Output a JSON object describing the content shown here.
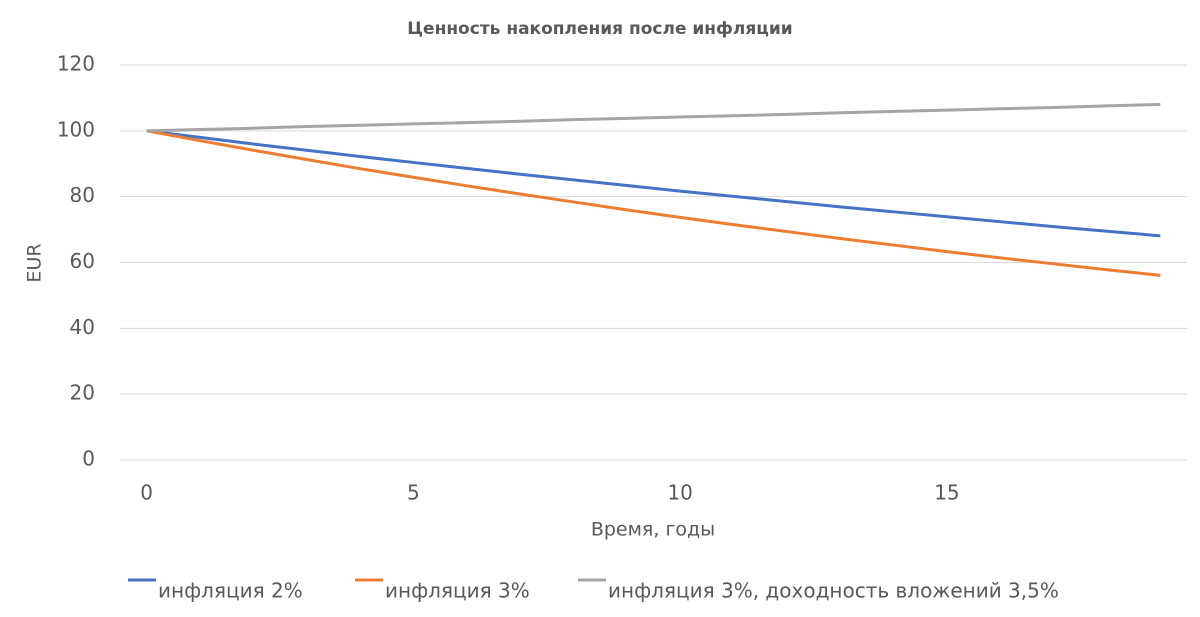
{
  "chart_data": {
    "type": "line",
    "title": "Ценность накопления после инфляции",
    "x_label": "Время, годы",
    "y_label": "EUR",
    "x": [
      0,
      1,
      2,
      3,
      4,
      5,
      6,
      7,
      8,
      9,
      10,
      11,
      12,
      13,
      14,
      15,
      16,
      17,
      18,
      19
    ],
    "series": [
      {
        "name": "инфляция 2%",
        "color": "#4472c4",
        "values": [
          100,
          98,
          96.0,
          94.1,
          92.2,
          90.4,
          88.6,
          86.8,
          85.1,
          83.4,
          81.7,
          80.1,
          78.5,
          76.9,
          75.4,
          73.9,
          72.4,
          70.9,
          69.5,
          68.1
        ]
      },
      {
        "name": "инфляция 3%",
        "color": "#ed7d31",
        "values": [
          100,
          97,
          94.1,
          91.3,
          88.5,
          85.9,
          83.3,
          80.8,
          78.4,
          76.0,
          73.7,
          71.5,
          69.4,
          67.3,
          65.3,
          63.3,
          61.4,
          59.6,
          57.8,
          56.1
        ]
      },
      {
        "name": "инфляция 3%, доходность вложений 3,5%",
        "color": "#a5a5a5",
        "values": [
          100,
          100.4,
          100.8,
          101.3,
          101.7,
          102.1,
          102.5,
          102.9,
          103.4,
          103.8,
          104.2,
          104.6,
          105.0,
          105.5,
          105.9,
          106.3,
          106.7,
          107.1,
          107.6,
          108.0
        ]
      }
    ],
    "xlim": [
      -0.5,
      19.5
    ],
    "xticks": [
      0,
      5,
      10,
      15
    ],
    "ylim": [
      0,
      120
    ],
    "yticks": [
      0,
      20,
      40,
      60,
      80,
      100,
      120
    ],
    "grid": true,
    "legend": "bottom"
  }
}
